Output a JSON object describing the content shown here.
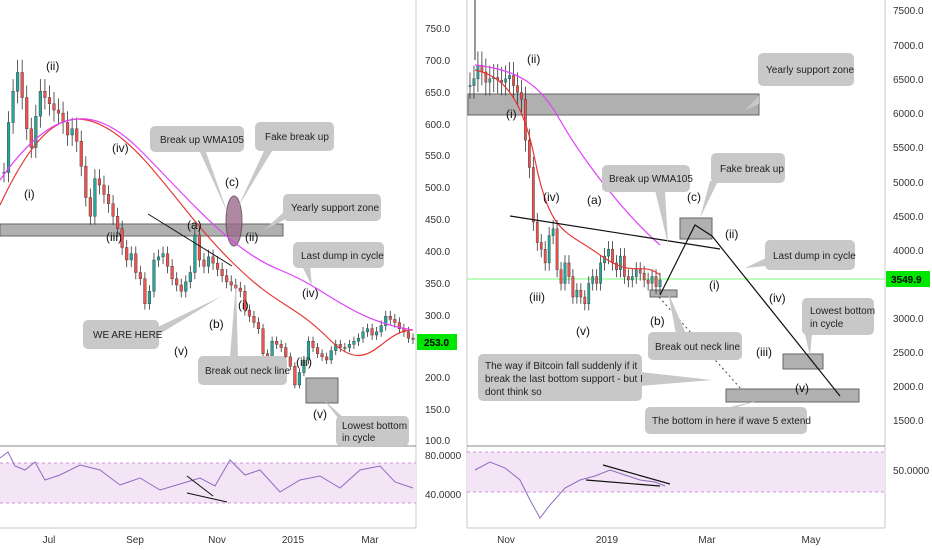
{
  "colors": {
    "up_candle": "#26a69a",
    "down_candle": "#ef5350",
    "ma_short": "#e53935",
    "ma_long": "#e040fb",
    "rsi_line": "#8e6bbf",
    "rsi_band": "#f3e5f5",
    "support_zone": "#b0b0b0",
    "callout_bg": "#c8c8c8",
    "price_tag_bg": "#00e600",
    "price_line": "#7cff7c",
    "axis_text": "#333333"
  },
  "chart_data": [
    {
      "type": "candlestick",
      "panel": "left",
      "y_axis_ticks": [
        "750.0",
        "700.0",
        "650.0",
        "600.0",
        "550.0",
        "500.0",
        "450.0",
        "400.0",
        "350.0",
        "300.0",
        "250.0",
        "200.0",
        "150.0",
        "100.0"
      ],
      "ylim": [
        100,
        780
      ],
      "x_axis_ticks": [
        "Jul",
        "Sep",
        "Nov",
        "2015",
        "Mar"
      ],
      "last_price_label": "253.0",
      "indicators": [
        "WMA (short, red)",
        "WMA105 (long, magenta)"
      ],
      "series": [
        {
          "x": [
            0,
            3,
            6,
            9,
            12,
            15,
            18,
            21,
            24,
            27,
            30,
            33,
            36,
            39,
            42,
            45,
            48,
            51,
            54,
            57,
            60,
            63,
            66,
            69,
            72,
            75,
            78,
            81,
            84,
            87,
            90,
            93,
            96,
            99,
            102,
            105,
            108,
            111,
            114,
            117,
            120,
            123,
            126,
            129,
            132,
            135,
            138,
            141,
            144,
            147,
            150,
            153,
            156,
            159,
            162,
            165,
            168,
            171,
            174,
            177,
            180,
            183,
            186,
            189,
            192,
            195,
            198,
            201,
            204,
            207,
            210,
            213,
            216,
            219,
            222,
            225,
            228,
            231,
            234,
            237,
            240,
            243,
            246,
            249,
            252,
            255,
            258,
            261,
            264,
            267,
            270
          ],
          "close": [
            520,
            600,
            650,
            680,
            640,
            590,
            560,
            610,
            650,
            640,
            630,
            620,
            615,
            600,
            580,
            590,
            570,
            530,
            480,
            450,
            510,
            500,
            485,
            470,
            450,
            430,
            400,
            380,
            390,
            360,
            350,
            310,
            330,
            380,
            385,
            390,
            370,
            350,
            340,
            330,
            345,
            360,
            420,
            380,
            370,
            385,
            375,
            365,
            355,
            345,
            340,
            335,
            330,
            300,
            290,
            280,
            270,
            230,
            210,
            250,
            245,
            240,
            225,
            210,
            180,
            200,
            220,
            250,
            240,
            230,
            225,
            220,
            235,
            245,
            240,
            240,
            245,
            250,
            255,
            265,
            270,
            260,
            265,
            275,
            290,
            285,
            280,
            270,
            265,
            255,
            253
          ]
        }
      ]
    },
    {
      "type": "candlestick",
      "panel": "right",
      "y_axis_ticks": [
        "7500.0",
        "7000.0",
        "6500.0",
        "6000.0",
        "5500.0",
        "5000.0",
        "4500.0",
        "4000.0",
        "3500.0",
        "3000.0",
        "2500.0",
        "2000.0",
        "1500.0"
      ],
      "ylim": [
        1100,
        7700
      ],
      "x_axis_ticks": [
        "Nov",
        "2019",
        "Mar",
        "May"
      ],
      "last_price_label": "3549.9",
      "indicators": [
        "WMA (short, red)",
        "WMA105 (long, magenta)"
      ],
      "series": [
        {
          "x": [
            0,
            2,
            4,
            6,
            8,
            10,
            12,
            14,
            16,
            18,
            20,
            22,
            24,
            26,
            28,
            30,
            32,
            34,
            36,
            38,
            40,
            42,
            44,
            46,
            48,
            50,
            52,
            54,
            56,
            58,
            60,
            62,
            64,
            66,
            68,
            70,
            72,
            74,
            76,
            78,
            80,
            82,
            84,
            86,
            88,
            90,
            92,
            94,
            96
          ],
          "close": [
            6400,
            6500,
            6700,
            6600,
            6450,
            6500,
            6520,
            6480,
            6450,
            6500,
            6550,
            6400,
            6300,
            6200,
            5600,
            5200,
            4400,
            4100,
            4000,
            3800,
            4200,
            4300,
            3700,
            3500,
            3800,
            3600,
            3300,
            3400,
            3300,
            3200,
            3500,
            3600,
            3500,
            3800,
            3900,
            4000,
            3800,
            3700,
            3900,
            3600,
            3550,
            3600,
            3700,
            3650,
            3550,
            3500,
            3600,
            3450,
            3549.9
          ]
        }
      ]
    }
  ],
  "rsi": {
    "left_ticks": [
      "80.0000",
      "40.0000"
    ],
    "right_ticks": [
      "50.0000"
    ]
  },
  "left_labels": {
    "wave_i_1": "(i)",
    "wave_ii_1": "(ii)",
    "wave_iii_1": "(iii)",
    "wave_iv_1": "(iv)",
    "wave_v_1": "(v)",
    "wave_a": "(a)",
    "wave_b": "(b)",
    "wave_c": "(c)",
    "wave_i_2": "(i)",
    "wave_ii_2": "(ii)",
    "wave_iii_2": "(iii)",
    "wave_iv_2": "(iv)",
    "wave_v_2": "(v)",
    "break_up": "Break up WMA105",
    "fake_break": "Fake break up",
    "yearly_support": "Yearly support zone",
    "last_dump": "Last dump in cycle",
    "we_are_here": "WE ARE HERE",
    "break_neck": "Break out neck line",
    "lowest_1": "Lowest bottom",
    "lowest_2": "in cycle"
  },
  "right_labels": {
    "wave_ii_1": "(ii)",
    "wave_i_1": "(i)",
    "wave_iv_1": "(iv)",
    "wave_iii_1": "(iii)",
    "wave_v_1": "(v)",
    "wave_a": "(a)",
    "wave_b": "(b)",
    "wave_c": "(c)",
    "wave_ii_2": "(ii)",
    "wave_i_2": "(i)",
    "wave_iv_2": "(iv)",
    "wave_iii_2": "(iii)",
    "wave_v_2": "(v)",
    "yearly_support": "Yearly support zone",
    "break_up": "Break up WMA105",
    "fake_break": "Fake break up",
    "last_dump": "Last dump in cycle",
    "lowest_1": "Lowest bottom",
    "lowest_2": "in cycle",
    "break_neck": "Break out neck line",
    "bitcoin_1": "The way if Bitcoin fall suddenly if it",
    "bitcoin_2": "break the last bottom support - but I",
    "bitcoin_3": "dont think so",
    "bottom_extend": "The bottom in here if wave 5 extend"
  }
}
